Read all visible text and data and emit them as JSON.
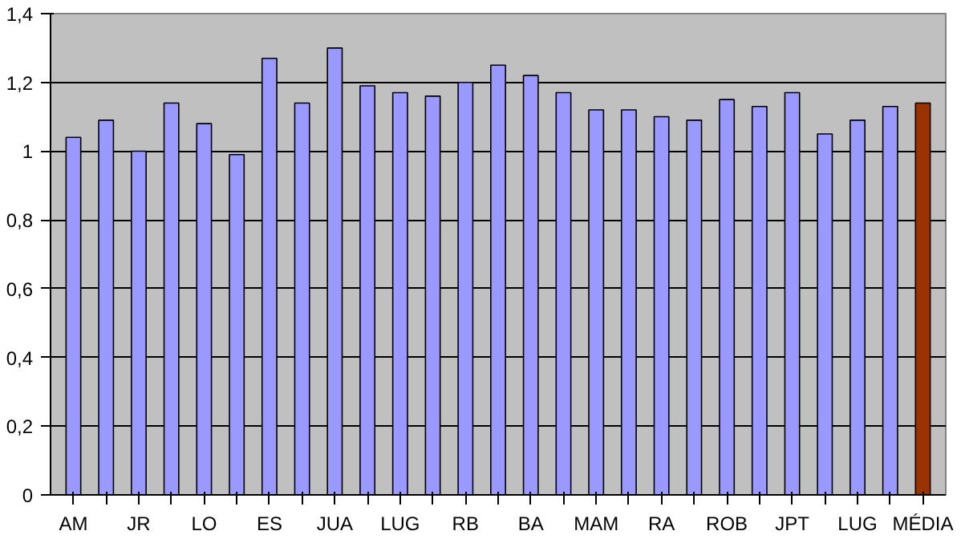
{
  "chart_data": {
    "type": "bar",
    "categories": [
      "AM",
      null,
      "JR",
      null,
      "LO",
      null,
      "ES",
      null,
      "JUA",
      null,
      "LUG",
      null,
      "RB",
      null,
      "BA",
      null,
      "MAM",
      null,
      "RA",
      null,
      "ROB",
      null,
      "JPT",
      null,
      "LUG",
      null,
      "MÉDIA"
    ],
    "values": [
      1.04,
      1.09,
      1.0,
      1.14,
      1.08,
      0.99,
      1.27,
      1.14,
      1.3,
      1.19,
      1.17,
      1.16,
      1.2,
      1.25,
      1.22,
      1.17,
      1.12,
      1.12,
      1.1,
      1.09,
      1.15,
      1.13,
      1.17,
      1.05,
      1.09,
      1.13,
      1.14
    ],
    "colors": [
      "#9999ff",
      "#9999ff",
      "#9999ff",
      "#9999ff",
      "#9999ff",
      "#9999ff",
      "#9999ff",
      "#9999ff",
      "#9999ff",
      "#9999ff",
      "#9999ff",
      "#9999ff",
      "#9999ff",
      "#9999ff",
      "#9999ff",
      "#9999ff",
      "#9999ff",
      "#9999ff",
      "#9999ff",
      "#9999ff",
      "#9999ff",
      "#9999ff",
      "#9999ff",
      "#9999ff",
      "#9999ff",
      "#9999ff",
      "#993300"
    ],
    "ylim": [
      0,
      1.4
    ],
    "yticks": [
      0,
      {
        "value": 0.2,
        "label": "0,2"
      },
      {
        "value": 0.4,
        "label": "0,4"
      },
      {
        "value": 0.6,
        "label": "0,6"
      },
      {
        "value": 0.8,
        "label": "0,8"
      },
      1,
      {
        "value": 1.2,
        "label": "1,2"
      },
      {
        "value": 1.4,
        "label": "1,4"
      }
    ],
    "grid": "y"
  }
}
